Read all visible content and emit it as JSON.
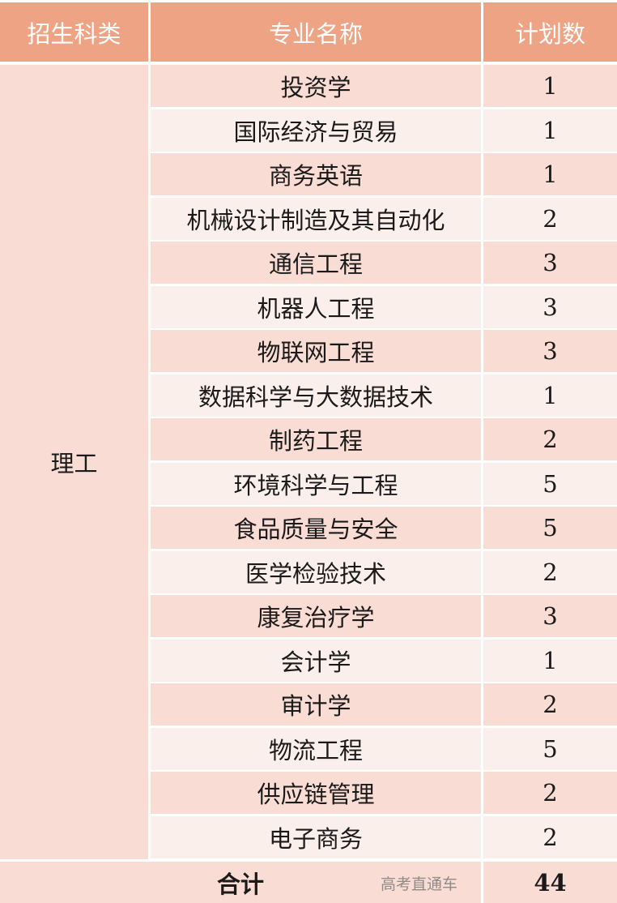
{
  "header": {
    "category": "招生科类",
    "major": "专业名称",
    "plan": "计划数"
  },
  "colors": {
    "header_bg": "#EDA384",
    "row_dark": "#F9DDD5",
    "row_light": "#FBEFEB"
  },
  "category": "理工",
  "rows": [
    {
      "major": "投资学",
      "plan": "1"
    },
    {
      "major": "国际经济与贸易",
      "plan": "1"
    },
    {
      "major": "商务英语",
      "plan": "1"
    },
    {
      "major": "机械设计制造及其自动化",
      "plan": "2"
    },
    {
      "major": "通信工程",
      "plan": "3"
    },
    {
      "major": "机器人工程",
      "plan": "3"
    },
    {
      "major": "物联网工程",
      "plan": "3"
    },
    {
      "major": "数据科学与大数据技术",
      "plan": "1"
    },
    {
      "major": "制药工程",
      "plan": "2"
    },
    {
      "major": "环境科学与工程",
      "plan": "5"
    },
    {
      "major": "食品质量与安全",
      "plan": "5"
    },
    {
      "major": "医学检验技术",
      "plan": "2"
    },
    {
      "major": "康复治疗学",
      "plan": "3"
    },
    {
      "major": "会计学",
      "plan": "1"
    },
    {
      "major": "审计学",
      "plan": "2"
    },
    {
      "major": "物流工程",
      "plan": "5"
    },
    {
      "major": "供应链管理",
      "plan": "2"
    },
    {
      "major": "电子商务",
      "plan": "2"
    }
  ],
  "total": {
    "label": "合计",
    "value": "44"
  },
  "watermark": "高考直通车"
}
